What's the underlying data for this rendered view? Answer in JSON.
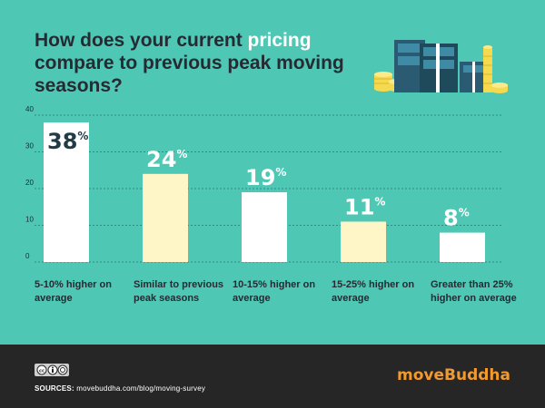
{
  "title": {
    "before": "How does your current ",
    "highlight": "pricing",
    "after": " compare to previous peak moving seasons?"
  },
  "colors": {
    "background": "#4ec7b4",
    "bar_white": "#ffffff",
    "bar_cream": "#fff6c7",
    "value_dark": "#223b47",
    "value_light": "#ffffff",
    "footer": "#262626",
    "logo": "#f29a2e"
  },
  "chart_data": {
    "type": "bar",
    "categories": [
      "5-10% higher on average",
      "Similar to previous peak seasons",
      "10-15% higher on average",
      "15-25% higher on average",
      "Greater than 25% higher on average"
    ],
    "values": [
      38,
      24,
      19,
      11,
      8
    ],
    "value_labels": [
      "38",
      "24",
      "19",
      "11",
      "8"
    ],
    "value_suffix": "%",
    "yticks": [
      "0",
      "10",
      "20",
      "30",
      "40"
    ],
    "ylim": [
      0,
      40
    ],
    "grid": true,
    "xlabel": "",
    "ylabel": ""
  },
  "footer": {
    "sources_label": "SOURCES:",
    "sources_url": "movebuddha.com/blog/moving-survey",
    "logo_move": "move",
    "logo_buddha": "Buddha",
    "cc_icon": "creative-commons-icon"
  }
}
